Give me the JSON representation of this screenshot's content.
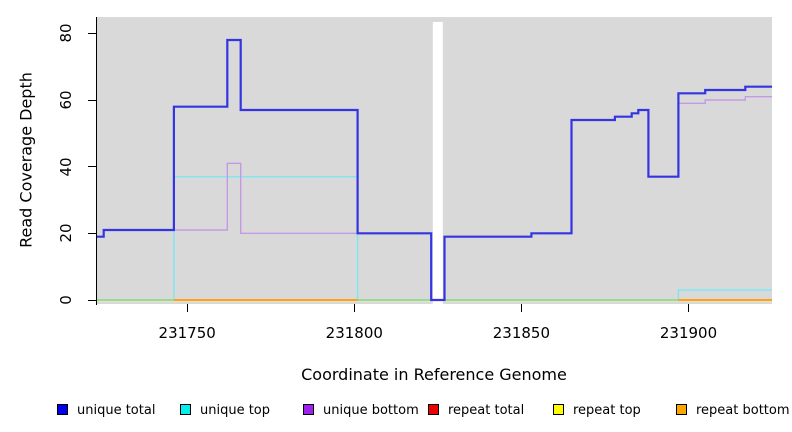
{
  "chart_data": {
    "type": "line",
    "style": "step",
    "title": "",
    "xlabel": "Coordinate in Reference Genome",
    "ylabel": "Read Coverage Depth",
    "x_range": [
      231723,
      231925
    ],
    "y_range": [
      0,
      80
    ],
    "x_ticks": [
      {
        "value": 231750,
        "label": "231750"
      },
      {
        "value": 231800,
        "label": "231800"
      },
      {
        "value": 231850,
        "label": "231850"
      },
      {
        "value": 231900,
        "label": "231900"
      }
    ],
    "y_ticks": [
      {
        "value": 0,
        "label": "0"
      },
      {
        "value": 20,
        "label": "20"
      },
      {
        "value": 40,
        "label": "40"
      },
      {
        "value": 60,
        "label": "60"
      },
      {
        "value": 80,
        "label": "80"
      }
    ],
    "grid": false,
    "legend_position": "bottom",
    "panel_background": "#d9d9d9",
    "gap_region": {
      "from": 231823.5,
      "to": 231826.5,
      "appearance": "white vertical band (no data)"
    },
    "baseline_blend_color": "#95d793",
    "baseline_fringe_color": "#e9e9b0",
    "series": [
      {
        "name": "unique total",
        "legend_color": "#0000ee",
        "line_color": "#3434e2",
        "line_width": 2.2,
        "segments": [
          [
            [
              231723,
              19
            ],
            [
              231725,
              21
            ],
            [
              231746,
              58
            ],
            [
              231762,
              78
            ],
            [
              231766,
              57
            ],
            [
              231801,
              20
            ],
            [
              231823,
              0
            ],
            [
              231827,
              19
            ],
            [
              231853,
              20
            ],
            [
              231865,
              54
            ],
            [
              231878,
              55
            ],
            [
              231883,
              56
            ],
            [
              231885,
              57
            ],
            [
              231888,
              37
            ],
            [
              231897,
              62
            ],
            [
              231905,
              63
            ],
            [
              231917,
              64
            ],
            [
              231925,
              64
            ]
          ]
        ]
      },
      {
        "name": "unique top",
        "legend_color": "#00eeee",
        "line_color": "#7ce7f2",
        "line_width": 1.4,
        "segments": [
          [
            [
              231723,
              0
            ],
            [
              231746,
              37
            ],
            [
              231801,
              0
            ],
            [
              231823,
              0
            ]
          ],
          [
            [
              231827,
              0
            ],
            [
              231897,
              3
            ],
            [
              231925,
              3
            ]
          ]
        ]
      },
      {
        "name": "unique bottom",
        "legend_color": "#a020f0",
        "line_color": "#c49ae6",
        "line_width": 1.4,
        "segments": [
          [
            [
              231723,
              19
            ],
            [
              231725,
              21
            ],
            [
              231762,
              41
            ],
            [
              231766,
              20
            ],
            [
              231823,
              20
            ]
          ],
          [
            [
              231827,
              19
            ],
            [
              231853,
              20
            ],
            [
              231865,
              54
            ],
            [
              231878,
              55
            ],
            [
              231883,
              56
            ],
            [
              231885,
              57
            ],
            [
              231888,
              37
            ],
            [
              231897,
              59
            ],
            [
              231905,
              60
            ],
            [
              231917,
              61
            ],
            [
              231925,
              61
            ]
          ]
        ]
      },
      {
        "name": "repeat total",
        "legend_color": "#ee0000",
        "line_color": "#ee6666",
        "line_width": 1,
        "segments": [
          [
            [
              231723,
              0
            ],
            [
              231925,
              0
            ]
          ]
        ]
      },
      {
        "name": "repeat top",
        "legend_color": "#ffff00",
        "line_color": "#e9e9b0",
        "line_width": 1.2,
        "segments": [
          [
            [
              231723,
              0
            ],
            [
              231925,
              0
            ]
          ]
        ]
      },
      {
        "name": "repeat bottom",
        "legend_color": "#ffa500",
        "line_color": "#ff9f1e",
        "line_width": 2,
        "segments": [
          [
            [
              231746,
              0
            ],
            [
              231801,
              0
            ]
          ],
          [
            [
              231897,
              0
            ],
            [
              231925,
              0
            ]
          ]
        ]
      }
    ]
  },
  "legend": {
    "items": [
      {
        "label": "unique total",
        "color": "#0000ee"
      },
      {
        "label": "unique top",
        "color": "#00eeee"
      },
      {
        "label": "unique bottom",
        "color": "#a020f0"
      },
      {
        "label": "repeat total",
        "color": "#ee0000"
      },
      {
        "label": "repeat top",
        "color": "#ffff00"
      },
      {
        "label": "repeat bottom",
        "color": "#ffa500"
      }
    ]
  }
}
